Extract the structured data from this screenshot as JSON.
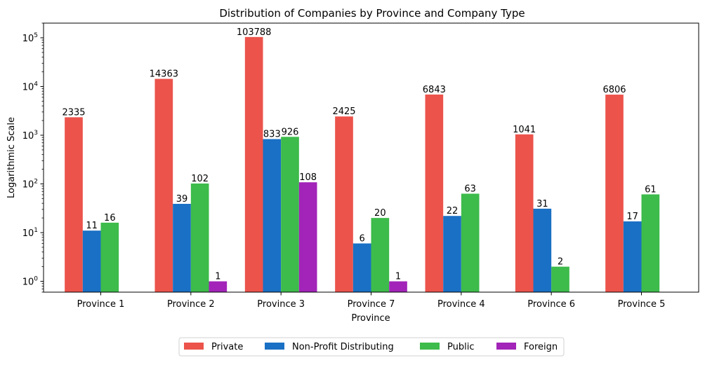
{
  "chart_data": {
    "type": "bar",
    "title": "Distribution of Companies by Province and Company Type",
    "xlabel": "Province",
    "ylabel": "Logarithmic Scale",
    "yscale": "log",
    "ylim": [
      0.6,
      200000
    ],
    "yticks": [
      {
        "value": 1,
        "base": "10",
        "exp": "0"
      },
      {
        "value": 10,
        "base": "10",
        "exp": "1"
      },
      {
        "value": 100,
        "base": "10",
        "exp": "2"
      },
      {
        "value": 1000,
        "base": "10",
        "exp": "3"
      },
      {
        "value": 10000,
        "base": "10",
        "exp": "4"
      },
      {
        "value": 100000,
        "base": "10",
        "exp": "5"
      }
    ],
    "categories": [
      "Province 1",
      "Province 2",
      "Province 3",
      "Province 7",
      "Province 4",
      "Province 6",
      "Province 5"
    ],
    "series": [
      {
        "name": "Private",
        "color": "#ec534b",
        "values": [
          2335,
          14363,
          103788,
          2425,
          6843,
          1041,
          6806
        ]
      },
      {
        "name": "Non-Profit Distributing",
        "color": "#1a70c4",
        "values": [
          11,
          39,
          833,
          6,
          22,
          31,
          17
        ]
      },
      {
        "name": "Public",
        "color": "#3dbb4b",
        "values": [
          16,
          102,
          926,
          20,
          63,
          2,
          61
        ]
      },
      {
        "name": "Foreign",
        "color": "#a224b8",
        "values": [
          null,
          1,
          108,
          1,
          null,
          null,
          null
        ]
      }
    ],
    "grid": false,
    "legend_position": "bottom-center"
  }
}
